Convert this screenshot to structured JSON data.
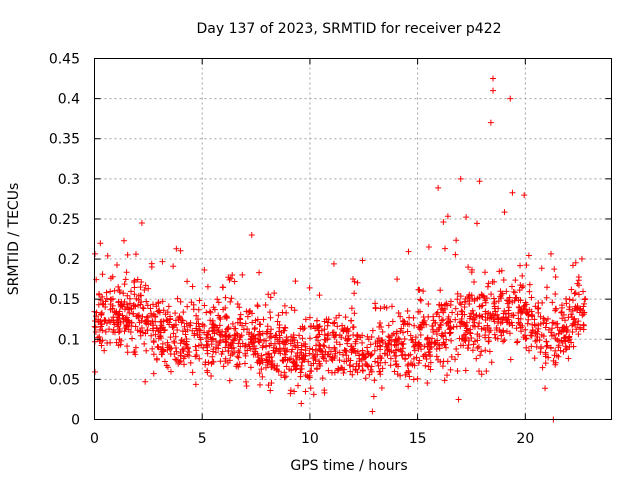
{
  "chart_data": {
    "type": "scatter",
    "title": "Day 137 of 2023, SRMTID for receiver p422",
    "xlabel": "GPS time / hours",
    "ylabel": "SRMTID / TECUs",
    "xlim": [
      0,
      24
    ],
    "ylim": [
      0,
      0.45
    ],
    "xticks": [
      0,
      5,
      10,
      15,
      20
    ],
    "xtick_labels": [
      "0",
      "5",
      "10",
      "15",
      "20"
    ],
    "yticks": [
      0,
      0.05,
      0.1,
      0.15,
      0.2,
      0.25,
      0.3,
      0.35,
      0.4,
      0.45
    ],
    "ytick_labels": [
      "0",
      "0.05",
      "0.1",
      "0.15",
      "0.2",
      "0.25",
      "0.3",
      "0.35",
      "0.4",
      "0.45"
    ],
    "grid": true,
    "marker": "+",
    "color": "#ff0000",
    "x_data_range": [
      0,
      22.8
    ],
    "profile": {
      "hours": [
        0,
        1,
        2,
        3,
        4,
        5,
        6,
        7,
        8,
        9,
        10,
        11,
        12,
        13,
        14,
        15,
        16,
        17,
        18,
        19,
        20,
        21,
        22,
        22.8
      ],
      "median": [
        0.12,
        0.13,
        0.13,
        0.11,
        0.1,
        0.1,
        0.11,
        0.1,
        0.09,
        0.08,
        0.08,
        0.09,
        0.09,
        0.08,
        0.09,
        0.1,
        0.11,
        0.12,
        0.12,
        0.13,
        0.13,
        0.1,
        0.12,
        0.14
      ]
    },
    "notable_points": [
      {
        "x": 18.5,
        "y": 0.425
      },
      {
        "x": 18.5,
        "y": 0.41
      },
      {
        "x": 19.3,
        "y": 0.4
      },
      {
        "x": 18.4,
        "y": 0.37
      },
      {
        "x": 17.0,
        "y": 0.3
      },
      {
        "x": 2.2,
        "y": 0.245
      },
      {
        "x": 7.3,
        "y": 0.23
      },
      {
        "x": 21.3,
        "y": 0.0
      },
      {
        "x": 16.9,
        "y": 0.025
      },
      {
        "x": 9.6,
        "y": 0.02
      },
      {
        "x": 12.9,
        "y": 0.01
      }
    ],
    "point_count": 1800
  }
}
